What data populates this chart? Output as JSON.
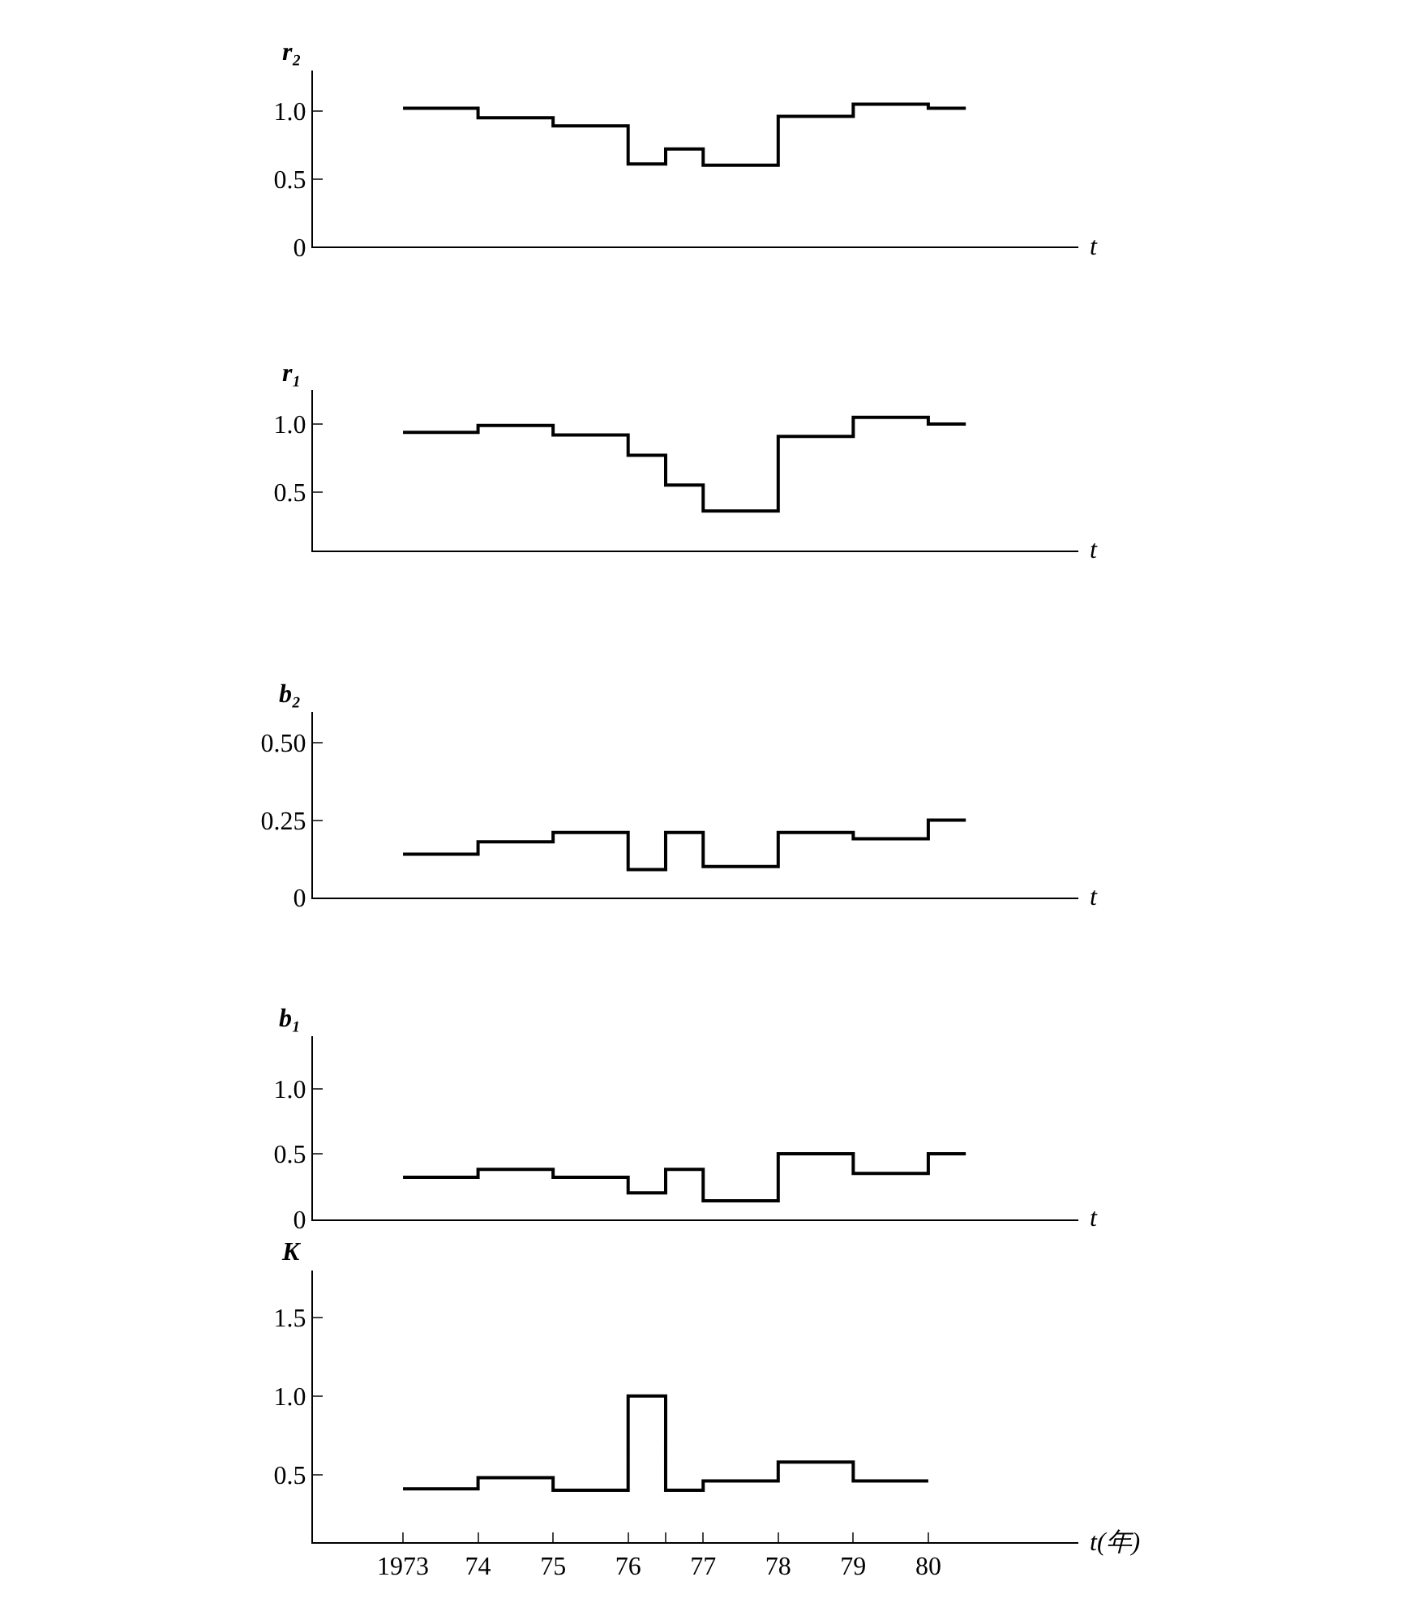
{
  "chart_data": [
    {
      "type": "step",
      "ylabel": "r₂",
      "xlabel": "t",
      "color": "#000000",
      "x": [
        1973,
        1974,
        1975,
        1976,
        1976.5,
        1977,
        1978,
        1979,
        1980,
        1980.5
      ],
      "values": [
        1.02,
        0.95,
        0.89,
        0.61,
        0.72,
        0.6,
        0.96,
        1.05,
        1.02,
        1.02
      ],
      "xlim": [
        1971.8,
        1982
      ],
      "ylim": [
        0,
        1.3
      ],
      "yticks": [
        0,
        0.5,
        {
          "value": 1,
          "label": "1.0"
        }
      ],
      "tick_labels": "y"
    },
    {
      "type": "step",
      "ylabel": "r₁",
      "xlabel": "t",
      "color": "#000000",
      "x": [
        1973,
        1974,
        1975,
        1976,
        1976.5,
        1977,
        1978,
        1979,
        1980,
        1980.5
      ],
      "values": [
        0.94,
        0.99,
        0.92,
        0.77,
        0.55,
        0.36,
        0.91,
        1.05,
        1.0,
        1.0
      ],
      "xlim": [
        1971.8,
        1982
      ],
      "ylim": [
        0.07,
        1.25
      ],
      "yticks": [
        0.5,
        {
          "value": 1,
          "label": "1.0"
        }
      ],
      "tick_labels": "y"
    },
    {
      "type": "step",
      "ylabel": "b₂",
      "xlabel": "t",
      "color": "#000000",
      "x": [
        1973,
        1974,
        1975,
        1976,
        1976.5,
        1977,
        1978,
        1979,
        1980,
        1980.5
      ],
      "values": [
        0.14,
        0.18,
        0.21,
        0.09,
        0.21,
        0.1,
        0.21,
        0.19,
        0.25,
        0.25
      ],
      "xlim": [
        1971.8,
        1982
      ],
      "ylim": [
        0,
        0.6
      ],
      "yticks": [
        0,
        {
          "value": 0.25,
          "label": "0.25"
        },
        {
          "value": 0.5,
          "label": "0.50"
        }
      ],
      "tick_labels": "y"
    },
    {
      "type": "step",
      "ylabel": "b₁",
      "xlabel": "t",
      "color": "#000000",
      "x": [
        1973,
        1974,
        1975,
        1976,
        1976.5,
        1977,
        1978,
        1979,
        1980,
        1980.5
      ],
      "values": [
        0.32,
        0.38,
        0.32,
        0.2,
        0.38,
        0.14,
        0.5,
        0.35,
        0.5,
        0.5
      ],
      "xlim": [
        1971.8,
        1982
      ],
      "ylim": [
        0,
        1.4
      ],
      "yticks": [
        0,
        0.5,
        {
          "value": 1,
          "label": "1.0"
        }
      ],
      "tick_labels": "y"
    },
    {
      "type": "step",
      "ylabel": "K",
      "xlabel": "t(年)",
      "color": "#000000",
      "x": [
        1973,
        1974,
        1975,
        1976,
        1976.5,
        1977,
        1978,
        1979,
        1980
      ],
      "values": [
        0.41,
        0.48,
        0.4,
        1.0,
        0.4,
        0.46,
        0.58,
        0.46,
        0.46
      ],
      "xlim": [
        1971.8,
        1982
      ],
      "ylim": [
        0.07,
        1.8
      ],
      "xticks": [
        1973,
        {
          "value": 1974,
          "label": "74"
        },
        {
          "value": 1975,
          "label": "75"
        },
        {
          "value": 1976,
          "label": "76"
        },
        {
          "value": 1976.5,
          "label": null
        },
        {
          "value": 1977,
          "label": "77"
        },
        {
          "value": 1978,
          "label": "78"
        },
        {
          "value": 1979,
          "label": "79"
        },
        {
          "value": 1980,
          "label": "80"
        }
      ],
      "yticks": [
        0.5,
        {
          "value": 1,
          "label": "1.0"
        },
        {
          "value": 1.5,
          "label": "1.5"
        }
      ]
    }
  ]
}
